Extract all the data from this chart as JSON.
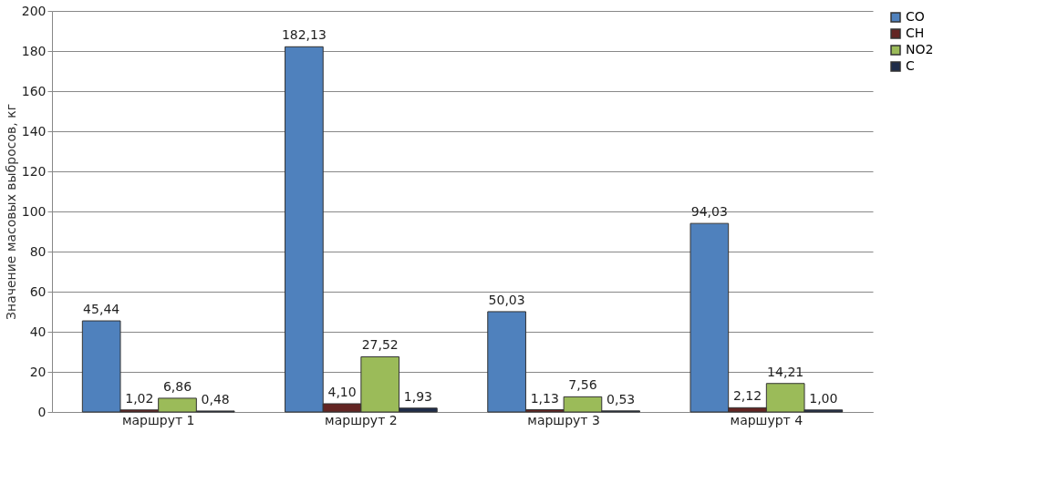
{
  "chart_data": {
    "type": "bar",
    "ylabel": "Значение масовых выбросов, кг",
    "categories": [
      "маршрут 1",
      "маршрут 2",
      "маршрут 3",
      "маршурт 4"
    ],
    "series": [
      {
        "name": "CO",
        "color": "#4f81bd",
        "values": [
          45.44,
          182.13,
          50.03,
          94.03
        ],
        "value_labels": [
          "45,44",
          "182,13",
          "50,03",
          "94,03"
        ]
      },
      {
        "name": "CH",
        "color": "#632523",
        "values": [
          1.02,
          4.1,
          1.13,
          2.12
        ],
        "value_labels": [
          "1,02",
          "4,10",
          "1,13",
          "2,12"
        ]
      },
      {
        "name": "NO2",
        "color": "#9bbb59",
        "values": [
          6.86,
          27.52,
          7.56,
          14.21
        ],
        "value_labels": [
          "6,86",
          "27,52",
          "7,56",
          "14,21"
        ]
      },
      {
        "name": "C",
        "color": "#1f2d4a",
        "values": [
          0.48,
          1.93,
          0.53,
          1.0
        ],
        "value_labels": [
          "0,48",
          "1,93",
          "0,53",
          "1,00"
        ]
      }
    ],
    "ylim": [
      0,
      200
    ],
    "yticks": [
      0,
      20,
      40,
      60,
      80,
      100,
      120,
      140,
      160,
      180,
      200
    ],
    "grid": "y",
    "legend": "right"
  }
}
